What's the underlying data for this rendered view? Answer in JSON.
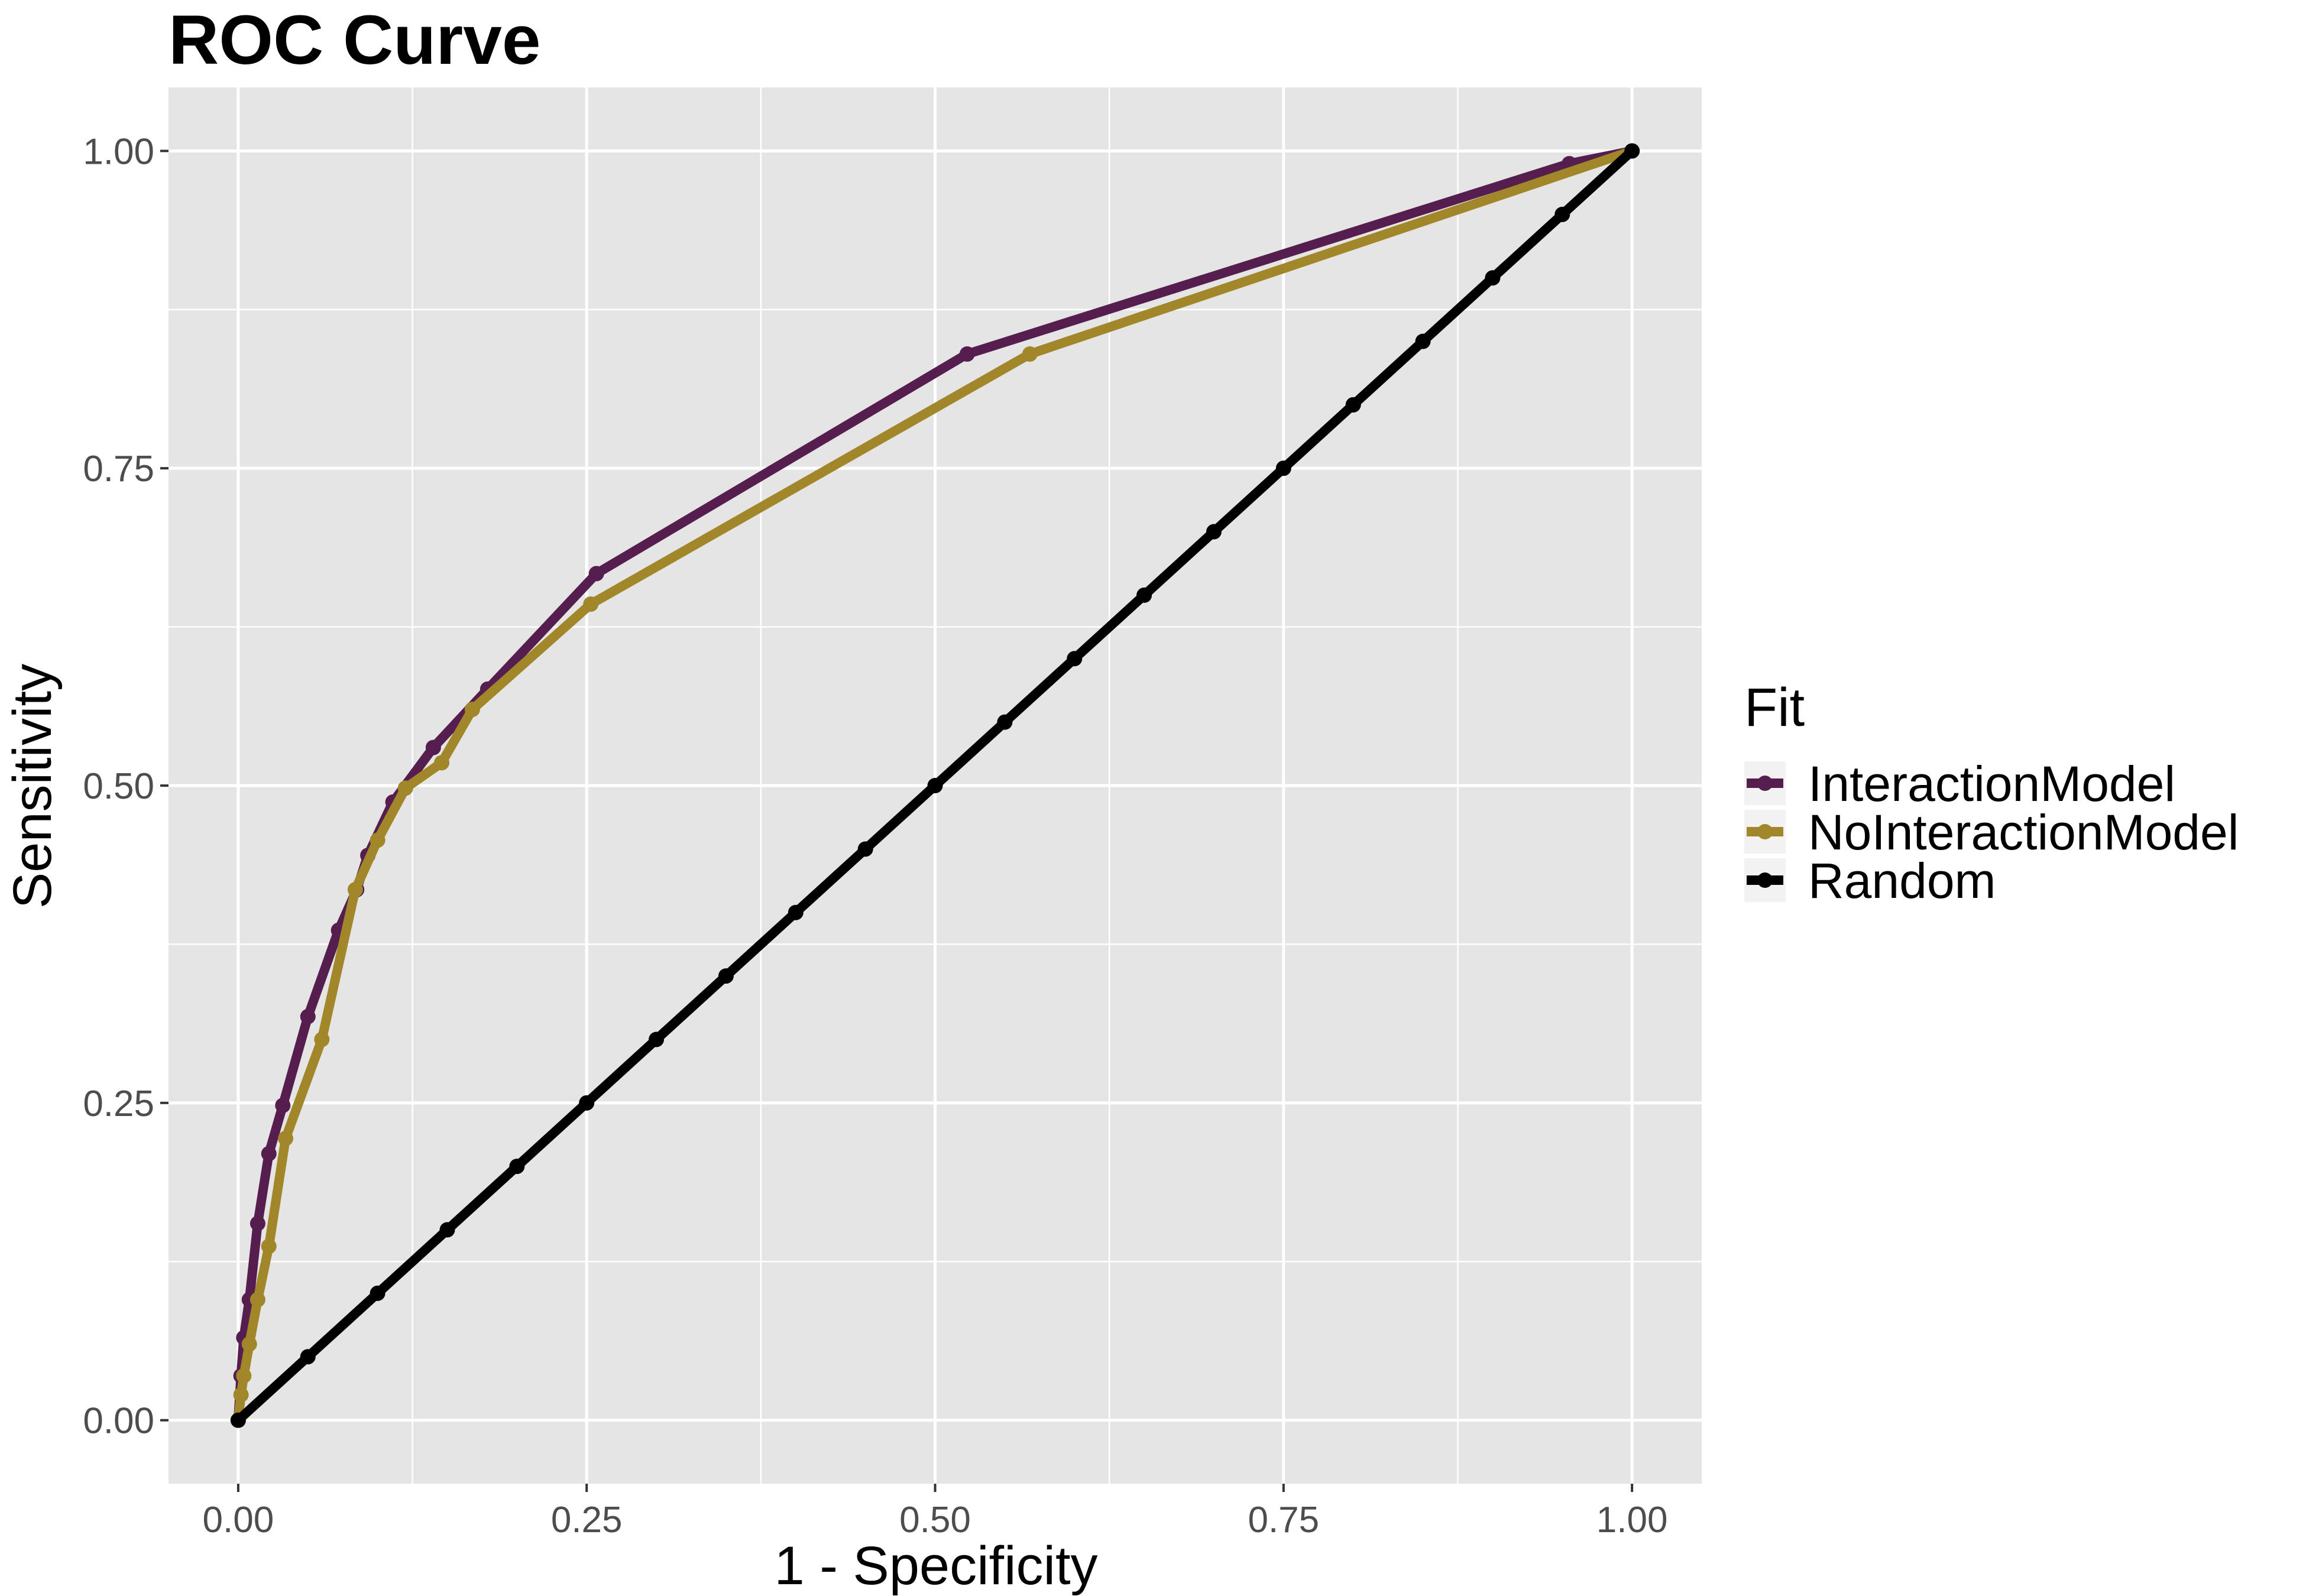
{
  "chart_data": {
    "type": "line",
    "title": "ROC Curve",
    "xlabel": "1 - Specificity",
    "ylabel": "Sensitivity",
    "xlim": [
      -0.05,
      1.05
    ],
    "ylim": [
      -0.05,
      1.05
    ],
    "x_ticks": [
      0,
      0.25,
      0.5,
      0.75,
      1
    ],
    "x_tick_labels": [
      "0.00",
      "0.25",
      "0.50",
      "0.75",
      "1.00"
    ],
    "y_ticks": [
      0,
      0.25,
      0.5,
      0.75,
      1
    ],
    "y_tick_labels": [
      "0.00",
      "0.25",
      "0.50",
      "0.75",
      "1.00"
    ],
    "grid": true,
    "legend": {
      "title": "Fit",
      "position": "right"
    },
    "series": [
      {
        "name": "InteractionModel",
        "color": "#561e4f",
        "x": [
          0,
          0.002,
          0.004,
          0.008,
          0.014,
          0.022,
          0.032,
          0.05,
          0.072,
          0.085,
          0.093,
          0.111,
          0.14,
          0.179,
          0.257,
          0.523,
          0.955,
          1
        ],
        "y": [
          0,
          0.035,
          0.065,
          0.095,
          0.155,
          0.21,
          0.248,
          0.318,
          0.386,
          0.418,
          0.445,
          0.487,
          0.53,
          0.576,
          0.667,
          0.84,
          0.99,
          1
        ]
      },
      {
        "name": "NoInteractionModel",
        "color": "#a2862a",
        "x": [
          0,
          0.002,
          0.004,
          0.008,
          0.014,
          0.022,
          0.034,
          0.06,
          0.084,
          0.1,
          0.12,
          0.146,
          0.168,
          0.253,
          0.568,
          1
        ],
        "y": [
          0,
          0.02,
          0.035,
          0.06,
          0.095,
          0.137,
          0.222,
          0.3,
          0.418,
          0.457,
          0.498,
          0.518,
          0.56,
          0.643,
          0.84,
          1
        ]
      },
      {
        "name": "Random",
        "color": "#000000",
        "x": [
          0,
          0.05,
          0.1,
          0.15,
          0.2,
          0.25,
          0.3,
          0.35,
          0.4,
          0.45,
          0.5,
          0.55,
          0.6,
          0.65,
          0.7,
          0.75,
          0.8,
          0.85,
          0.9,
          0.95,
          1
        ],
        "y": [
          0,
          0.05,
          0.1,
          0.15,
          0.2,
          0.25,
          0.3,
          0.35,
          0.4,
          0.45,
          0.5,
          0.55,
          0.6,
          0.65,
          0.7,
          0.75,
          0.8,
          0.85,
          0.9,
          0.95,
          1
        ]
      }
    ]
  },
  "colors": {
    "panel_background": "#e5e5e5",
    "grid": "#ffffff",
    "legend_key_background": "#f2f2f2",
    "tick_text": "#4d4d4d"
  }
}
